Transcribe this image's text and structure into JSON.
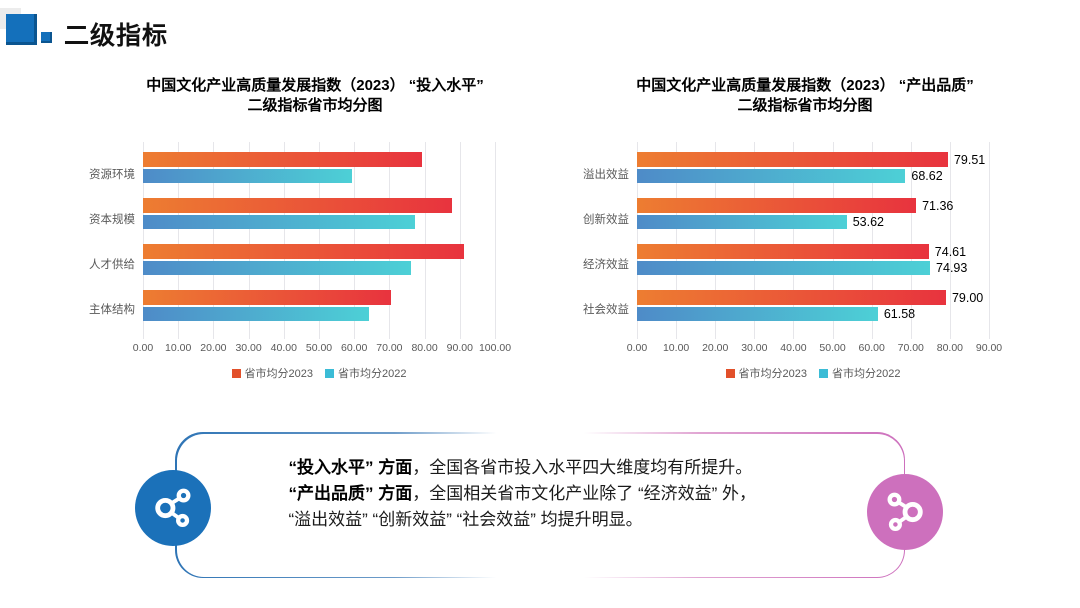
{
  "header": {
    "title": "二级指标"
  },
  "colors": {
    "header_square": "#1470BB",
    "header_square_shadow": "#0B5590",
    "header_square_gray": "#ECECEC",
    "bar_2023_gradient": [
      "#ED7D31",
      "#E8333E"
    ],
    "bar_2022_gradient": [
      "#4E8BC8",
      "#4DD0D6"
    ],
    "legend_2023": "#E2502A",
    "legend_2022": "#3BBCD6",
    "axis_text": "#595959",
    "gridline": "#E6E6EA",
    "callout_border_left": "#2E74B5",
    "callout_border_right": "#CD70BD",
    "badge_blue": "#1B71B9",
    "badge_pink": "#CD70BD"
  },
  "charts": [
    {
      "title_line1": "中国文化产业高质量发展指数（2023） “投入水平”",
      "title_line2": "二级指标省市均分图"
    },
    {
      "title_line1": "中国文化产业高质量发展指数（2023） “产出品质”",
      "title_line2": "二级指标省市均分图"
    }
  ],
  "chart_data": [
    {
      "type": "bar",
      "orientation": "horizontal",
      "title": "中国文化产业高质量发展指数（2023）“投入水平”二级指标省市均分图",
      "categories": [
        "资源环境",
        "资本规模",
        "人才供给",
        "主体结构"
      ],
      "series": [
        {
          "name": "省市均分2023",
          "values": [
            79.2,
            87.9,
            91.2,
            70.5
          ]
        },
        {
          "name": "省市均分2022",
          "values": [
            59.4,
            77.3,
            76.0,
            64.2
          ]
        }
      ],
      "xlim": [
        0,
        100
      ],
      "xticks": [
        "0.00",
        "10.00",
        "20.00",
        "30.00",
        "40.00",
        "50.00",
        "60.00",
        "70.00",
        "80.00",
        "90.00",
        "100.00"
      ],
      "show_value_labels": false,
      "grid": true,
      "legend_position": "bottom",
      "note": "no data labels shown; values estimated from bar lengths"
    },
    {
      "type": "bar",
      "orientation": "horizontal",
      "title": "中国文化产业高质量发展指数（2023）“产出品质”二级指标省市均分图",
      "categories": [
        "溢出效益",
        "创新效益",
        "经济效益",
        "社会效益"
      ],
      "series": [
        {
          "name": "省市均分2023",
          "values": [
            79.51,
            71.36,
            74.61,
            79.0
          ],
          "labels": [
            "79.51",
            "71.36",
            "74.61",
            "79.00"
          ]
        },
        {
          "name": "省市均分2022",
          "values": [
            68.62,
            53.62,
            74.93,
            61.58
          ],
          "labels": [
            "68.62",
            "53.62",
            "74.93",
            "61.58"
          ]
        }
      ],
      "xlim": [
        0,
        90
      ],
      "xticks": [
        "0.00",
        "10.00",
        "20.00",
        "30.00",
        "40.00",
        "50.00",
        "60.00",
        "70.00",
        "80.00",
        "90.00"
      ],
      "show_value_labels": true,
      "grid": true,
      "legend_position": "bottom"
    }
  ],
  "callout": {
    "para1_bold": "“投入水平” 方面",
    "para1_rest": "，全国各省市投入水平四大维度均有所提升。",
    "para2_bold": "“产出品质” 方面",
    "para2_rest1": "，全国相关省市文化产业除了 “经济效益” 外，",
    "para2_rest2": "“溢出效益” “创新效益” “社会效益” 均提升明显。"
  }
}
